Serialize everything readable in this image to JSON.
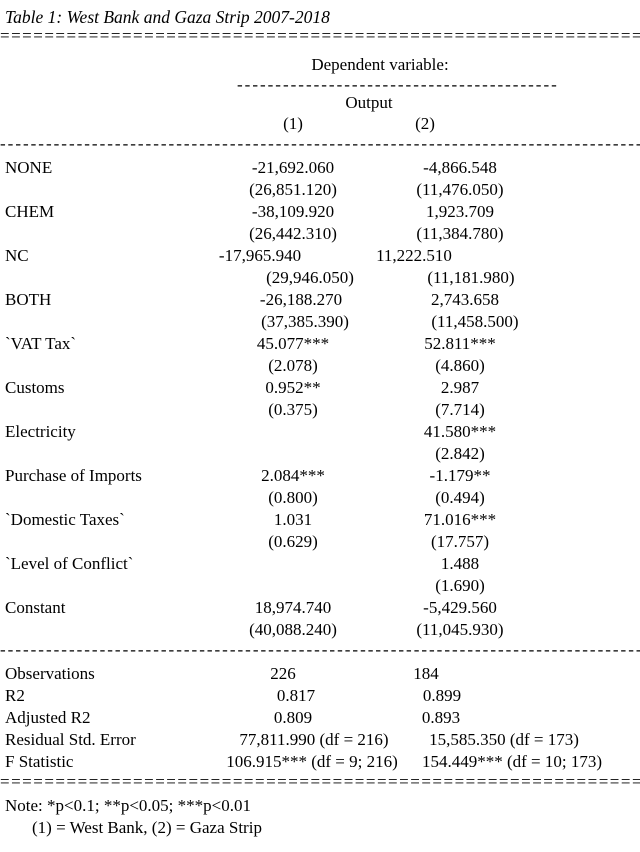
{
  "title": "Table 1: West Bank and Gaza Strip 2007-2018",
  "header": {
    "dependent_variable_label": "Dependent variable:",
    "outcome_label": "Output",
    "column_labels": [
      "(1)",
      "(2)"
    ]
  },
  "coefficients": [
    {
      "label": "NONE",
      "est": [
        "-21,692.060",
        "-4,866.548"
      ],
      "se": [
        "(26,851.120)",
        "(11,476.050)"
      ]
    },
    {
      "label": "CHEM",
      "est": [
        "-38,109.920",
        "1,923.709"
      ],
      "se": [
        "(26,442.310)",
        "(11,384.780)"
      ]
    },
    {
      "label": "NC",
      "est": [
        "-17,965.940",
        "11,222.510"
      ],
      "se": [
        "(29,946.050)",
        "(11,181.980)"
      ]
    },
    {
      "label": "BOTH",
      "est": [
        "-26,188.270",
        "2,743.658"
      ],
      "se": [
        "(37,385.390)",
        "(11,458.500)"
      ]
    },
    {
      "label": "`VAT Tax`",
      "est": [
        "45.077***",
        "52.811***"
      ],
      "se": [
        "(2.078)",
        "(4.860)"
      ]
    },
    {
      "label": "Customs",
      "est": [
        "0.952**",
        "2.987"
      ],
      "se": [
        "(0.375)",
        "(7.714)"
      ]
    },
    {
      "label": "Electricity",
      "est": [
        "",
        "41.580***"
      ],
      "se": [
        "",
        "(2.842)"
      ]
    },
    {
      "label": "Purchase of Imports",
      "est": [
        "2.084***",
        "-1.179**"
      ],
      "se": [
        "(0.800)",
        "(0.494)"
      ]
    },
    {
      "label": "`Domestic Taxes`",
      "est": [
        "1.031",
        "71.016***"
      ],
      "se": [
        "(0.629)",
        "(17.757)"
      ]
    },
    {
      "label": "`Level of Conflict`",
      "est": [
        "",
        "1.488"
      ],
      "se": [
        "",
        "(1.690)"
      ]
    },
    {
      "label": "Constant",
      "est": [
        "18,974.740",
        "-5,429.560"
      ],
      "se": [
        "(40,088.240)",
        "(11,045.930)"
      ]
    }
  ],
  "statistics": [
    {
      "label": "Observations",
      "values": [
        "226",
        "184"
      ]
    },
    {
      "label": "R2",
      "values": [
        "0.817",
        "0.899"
      ]
    },
    {
      "label": "Adjusted R2",
      "values": [
        "0.809",
        "0.893"
      ]
    },
    {
      "label": "Residual Std. Error",
      "values": [
        "77,811.990 (df = 216)",
        "15,585.350 (df = 173)"
      ]
    },
    {
      "label": "F Statistic",
      "values": [
        "106.915*** (df = 9; 216)",
        "154.449*** (df = 10; 173)"
      ]
    }
  ],
  "notes": {
    "significance": "Note: *p<0.1; **p<0.05; ***p<0.01",
    "legend": "(1) = West Bank, (2) = Gaza Strip"
  },
  "rules": {
    "double_char": "=",
    "dash_char": "-"
  },
  "colors": {
    "text": "#000000",
    "background": "#ffffff"
  }
}
